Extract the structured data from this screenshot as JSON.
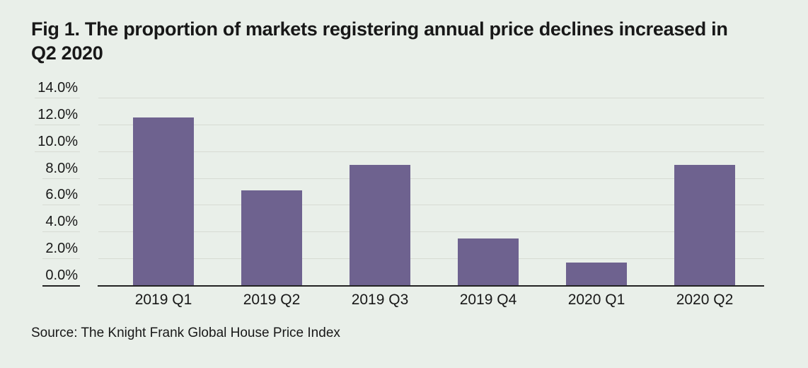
{
  "title": "Fig 1. The proportion of markets registering annual price declines increased in Q2 2020",
  "source": "Source: The Knight Frank Global House Price Index",
  "colors": {
    "background": "#e9efe9",
    "bar": "#6e628f",
    "gridline": "#d7dbd3",
    "axis_line": "#232323",
    "text": "#181818"
  },
  "chart_data": {
    "type": "bar",
    "title": "Fig 1. The proportion of markets registering annual price declines increased in Q2 2020",
    "categories": [
      "2019 Q1",
      "2019 Q2",
      "2019 Q3",
      "2019 Q4",
      "2020 Q1",
      "2020 Q2"
    ],
    "values": [
      12.5,
      7.1,
      9.0,
      3.5,
      1.7,
      9.0
    ],
    "unit": "%",
    "xlabel": "",
    "ylabel": "",
    "ylim": [
      0,
      14
    ],
    "ytick_step": 2,
    "ytick_labels": [
      "0.0%",
      "2.0%",
      "4.0%",
      "6.0%",
      "8.0%",
      "10.0%",
      "12.0%",
      "14.0%"
    ],
    "grid": true,
    "legend": false,
    "source": "Source: The Knight Frank Global House Price Index"
  }
}
